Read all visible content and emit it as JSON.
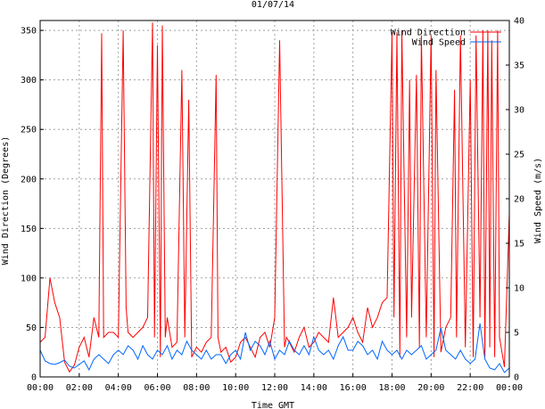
{
  "chart_data": {
    "type": "line",
    "title": "01/07/14",
    "xlabel": "Time GMT",
    "ylabel_left": "Wind Direction (Degrees)",
    "ylabel_right": "Wind Speed (m/s)",
    "x_ticks": [
      "00:00",
      "02:00",
      "04:00",
      "06:00",
      "08:00",
      "10:00",
      "12:00",
      "14:00",
      "16:00",
      "18:00",
      "20:00",
      "22:00",
      "00:00"
    ],
    "x_range_hours": [
      0,
      24
    ],
    "ylim_left": [
      0,
      360
    ],
    "ylim_right": [
      0,
      40
    ],
    "y_ticks_left": [
      0,
      50,
      100,
      150,
      200,
      250,
      300,
      350
    ],
    "y_ticks_right": [
      0,
      5,
      10,
      15,
      20,
      25,
      30,
      35,
      40
    ],
    "grid": true,
    "legend_position": "top-right",
    "series": [
      {
        "name": "Wind Direction",
        "axis": "left",
        "color": "#ff0000",
        "x_hours": [
          0.0,
          0.25,
          0.5,
          0.75,
          1.0,
          1.25,
          1.5,
          1.75,
          2.0,
          2.25,
          2.5,
          2.75,
          3.0,
          3.15,
          3.25,
          3.5,
          3.75,
          4.0,
          4.25,
          4.4,
          4.5,
          4.75,
          5.0,
          5.25,
          5.5,
          5.75,
          5.85,
          6.0,
          6.15,
          6.25,
          6.4,
          6.5,
          6.75,
          7.0,
          7.25,
          7.4,
          7.6,
          7.75,
          8.0,
          8.25,
          8.5,
          8.75,
          9.0,
          9.1,
          9.25,
          9.5,
          9.75,
          10.0,
          10.25,
          10.5,
          10.75,
          11.0,
          11.25,
          11.5,
          11.75,
          12.0,
          12.25,
          12.5,
          12.6,
          12.75,
          13.0,
          13.25,
          13.5,
          13.75,
          14.0,
          14.25,
          14.5,
          14.75,
          15.0,
          15.25,
          15.5,
          15.75,
          16.0,
          16.25,
          16.5,
          16.75,
          17.0,
          17.25,
          17.5,
          17.75,
          18.0,
          18.1,
          18.25,
          18.4,
          18.5,
          18.75,
          18.9,
          19.0,
          19.25,
          19.4,
          19.5,
          19.75,
          20.0,
          20.15,
          20.25,
          20.5,
          20.75,
          21.0,
          21.2,
          21.3,
          21.5,
          21.75,
          22.0,
          22.15,
          22.3,
          22.5,
          22.65,
          22.75,
          22.9,
          23.0,
          23.1,
          23.25,
          23.4,
          23.5,
          23.75,
          24.0
        ],
        "values": [
          35,
          40,
          100,
          75,
          60,
          15,
          5,
          12,
          30,
          40,
          20,
          60,
          40,
          347,
          40,
          45,
          45,
          40,
          350,
          70,
          45,
          40,
          45,
          50,
          60,
          358,
          40,
          335,
          20,
          355,
          40,
          60,
          30,
          35,
          310,
          40,
          280,
          20,
          30,
          25,
          35,
          40,
          305,
          40,
          25,
          30,
          15,
          20,
          35,
          40,
          30,
          20,
          40,
          45,
          30,
          60,
          340,
          30,
          40,
          35,
          25,
          40,
          50,
          30,
          35,
          45,
          40,
          35,
          80,
          40,
          45,
          50,
          60,
          45,
          35,
          70,
          50,
          60,
          75,
          80,
          348,
          60,
          348,
          20,
          350,
          40,
          300,
          60,
          305,
          30,
          345,
          40,
          345,
          20,
          310,
          25,
          50,
          60,
          290,
          40,
          345,
          30,
          300,
          20,
          345,
          60,
          350,
          20,
          350,
          30,
          340,
          20,
          350,
          40,
          10,
          165
        ]
      },
      {
        "name": "Wind Speed",
        "axis": "right",
        "color": "#0066ff",
        "x_hours": [
          0.0,
          0.25,
          0.5,
          0.75,
          1.0,
          1.25,
          1.5,
          1.75,
          2.0,
          2.25,
          2.5,
          2.75,
          3.0,
          3.25,
          3.5,
          3.75,
          4.0,
          4.25,
          4.5,
          4.75,
          5.0,
          5.25,
          5.5,
          5.75,
          6.0,
          6.25,
          6.5,
          6.75,
          7.0,
          7.25,
          7.5,
          7.75,
          8.0,
          8.25,
          8.5,
          8.75,
          9.0,
          9.25,
          9.5,
          9.75,
          10.0,
          10.25,
          10.5,
          10.75,
          11.0,
          11.25,
          11.5,
          11.75,
          12.0,
          12.25,
          12.5,
          12.75,
          13.0,
          13.25,
          13.5,
          13.75,
          14.0,
          14.25,
          14.5,
          14.75,
          15.0,
          15.25,
          15.5,
          15.75,
          16.0,
          16.25,
          16.5,
          16.75,
          17.0,
          17.25,
          17.5,
          17.75,
          18.0,
          18.25,
          18.5,
          18.75,
          19.0,
          19.25,
          19.5,
          19.75,
          20.0,
          20.25,
          20.5,
          20.75,
          21.0,
          21.25,
          21.5,
          21.75,
          22.0,
          22.25,
          22.5,
          22.75,
          23.0,
          23.25,
          23.5,
          23.75,
          24.0
        ],
        "values": [
          3.0,
          1.8,
          1.5,
          1.4,
          1.6,
          1.9,
          1.2,
          1.0,
          1.4,
          1.8,
          0.8,
          2.0,
          2.5,
          2.0,
          1.5,
          2.5,
          3.0,
          2.5,
          3.5,
          3.0,
          2.0,
          3.5,
          2.5,
          2.0,
          3.0,
          2.5,
          3.5,
          2.0,
          3.0,
          2.5,
          4.0,
          3.0,
          2.5,
          2.0,
          3.0,
          2.0,
          2.5,
          2.5,
          1.5,
          2.5,
          3.0,
          2.0,
          5.0,
          3.0,
          4.0,
          3.5,
          2.5,
          4.0,
          2.0,
          3.0,
          2.5,
          4.0,
          3.0,
          2.5,
          3.5,
          2.5,
          4.5,
          3.0,
          2.5,
          3.0,
          2.0,
          3.5,
          4.5,
          3.0,
          3.0,
          4.0,
          3.5,
          2.5,
          3.0,
          2.0,
          4.0,
          3.0,
          2.5,
          3.0,
          2.0,
          3.0,
          2.5,
          3.0,
          3.5,
          2.0,
          2.5,
          3.0,
          5.5,
          3.0,
          2.5,
          2.0,
          3.0,
          2.0,
          1.5,
          2.0,
          6.0,
          2.0,
          1.0,
          0.8,
          1.5,
          0.5,
          1.0
        ]
      }
    ]
  }
}
